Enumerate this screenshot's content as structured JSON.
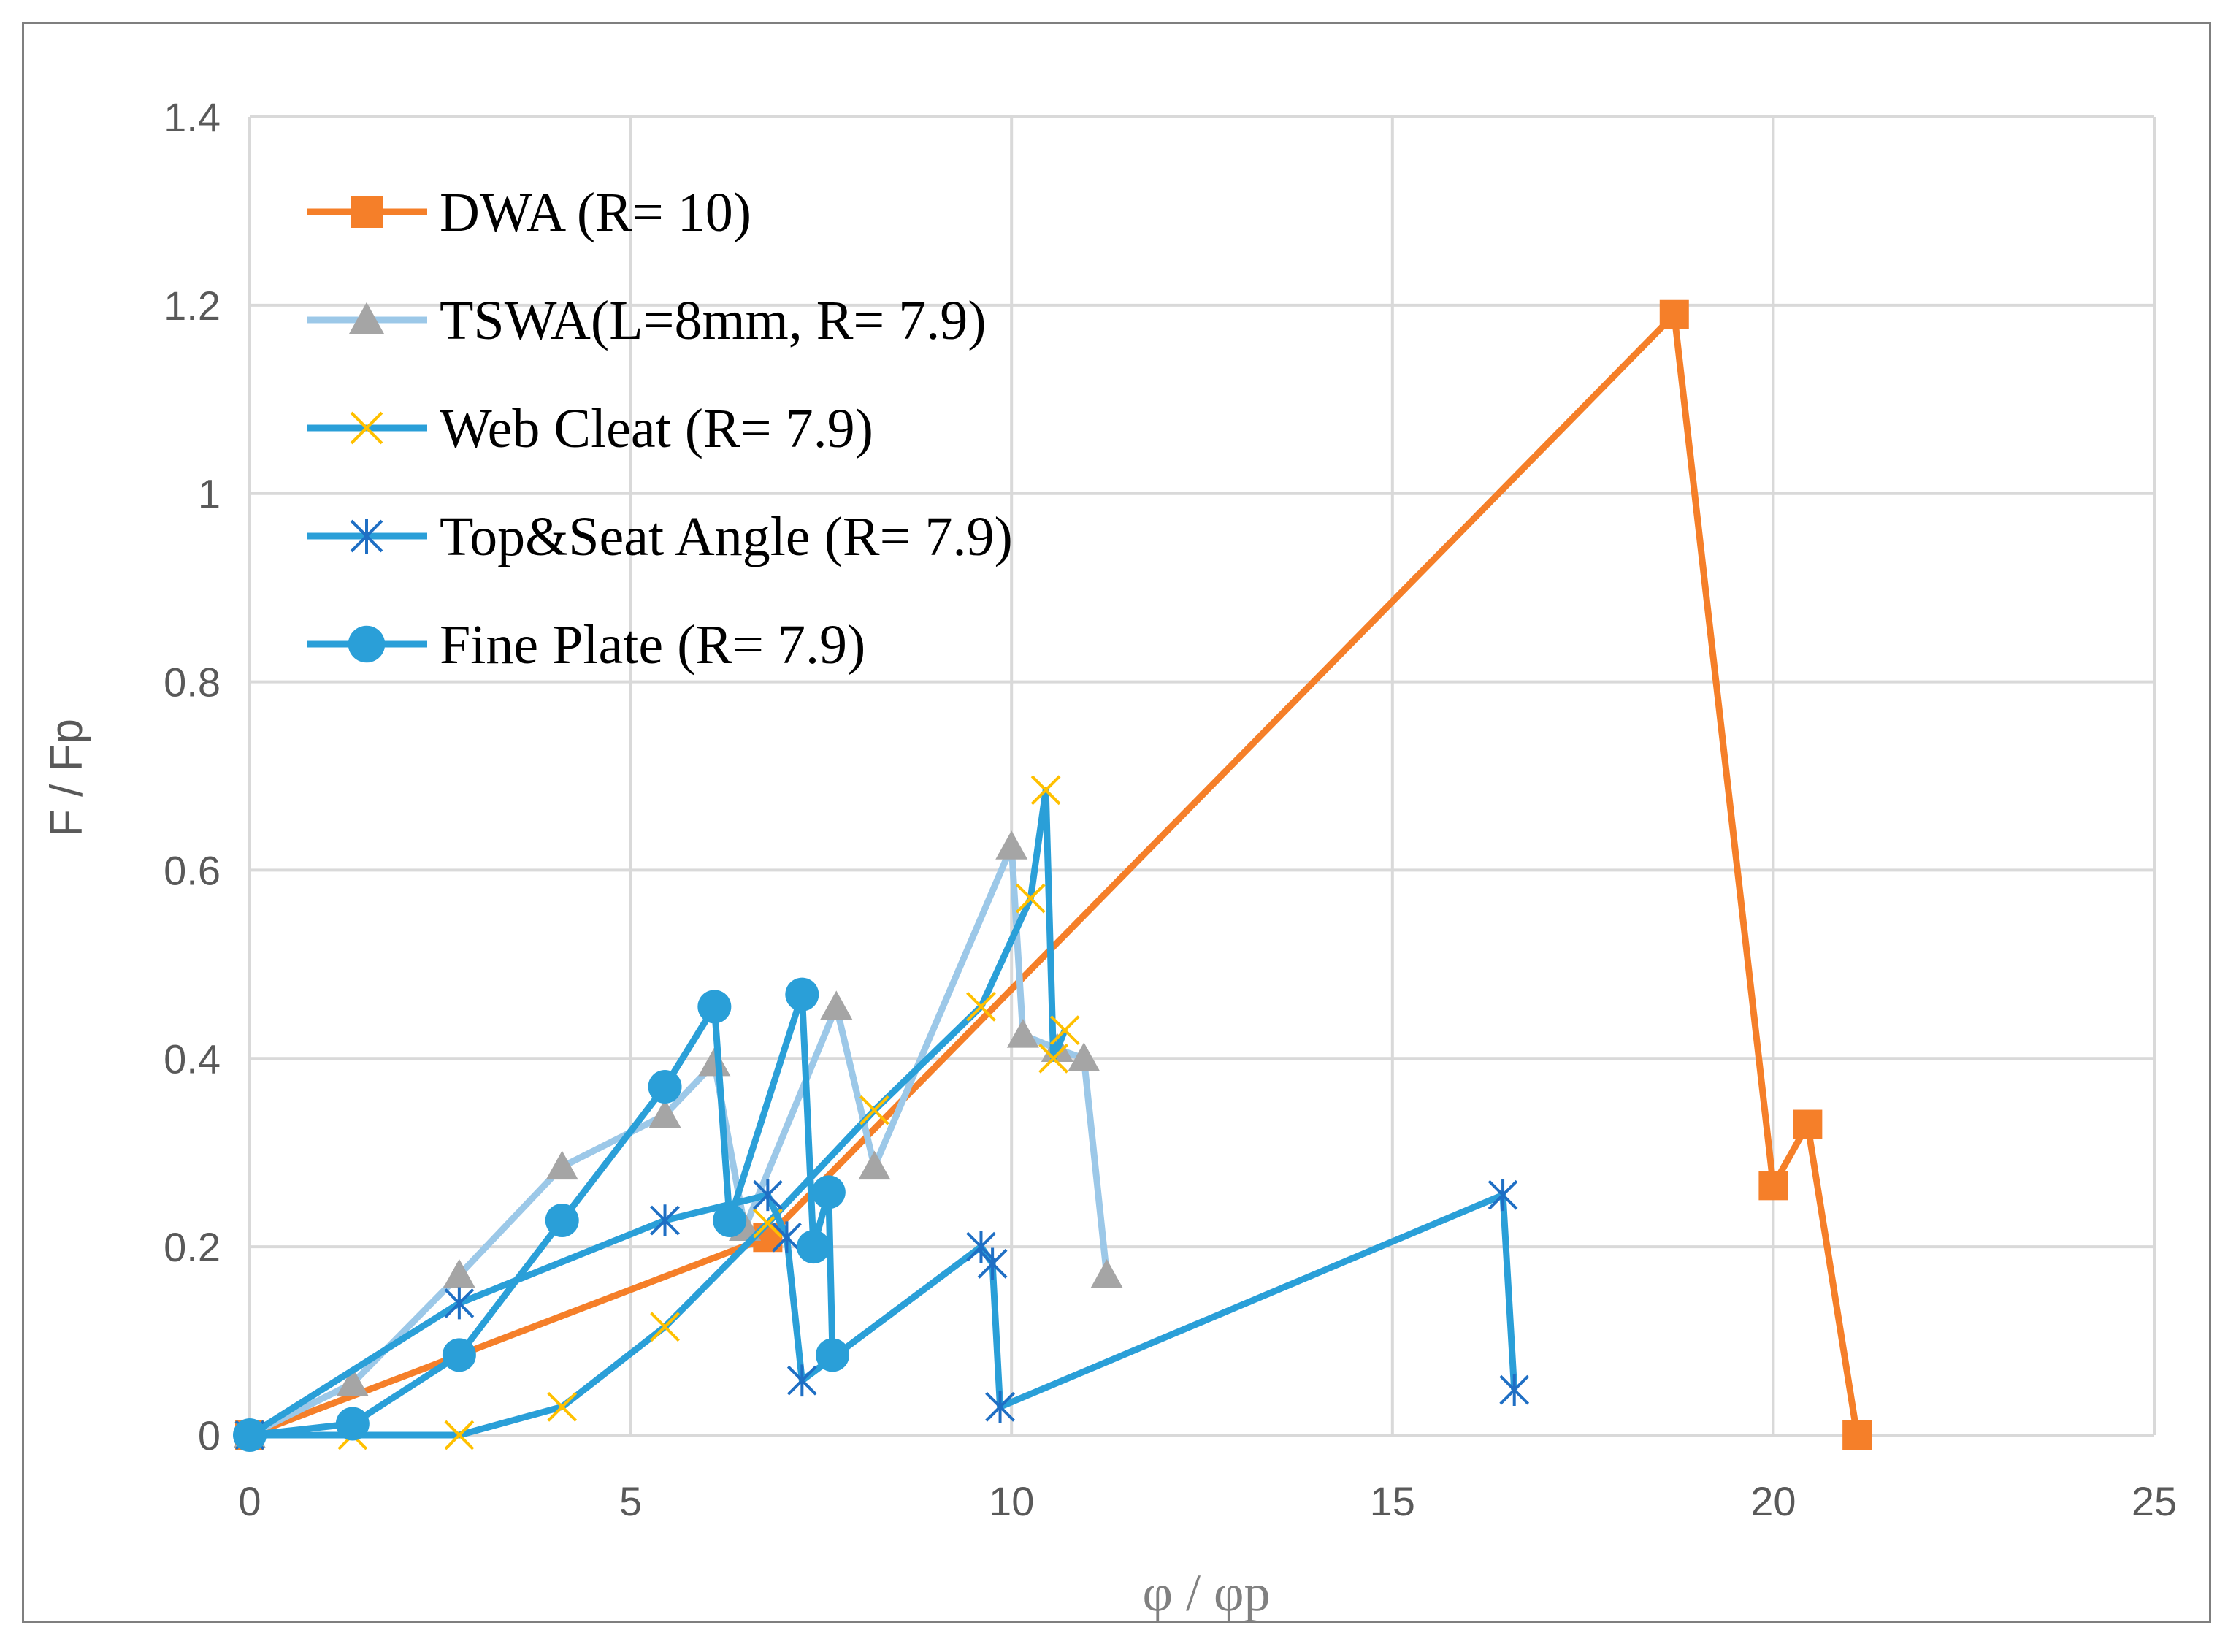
{
  "chart_data": {
    "type": "line",
    "title": "",
    "xlabel": "φ / φp",
    "ylabel": "F / Fp",
    "xlim": [
      0,
      25
    ],
    "ylim": [
      0,
      1.4
    ],
    "x_ticks": [
      0,
      5,
      10,
      15,
      20,
      25
    ],
    "y_ticks": [
      0,
      0.2,
      0.4,
      0.6,
      0.8,
      1,
      1.2,
      1.4
    ],
    "x_tick_labels": [
      "0",
      "5",
      "10",
      "15",
      "20",
      "25"
    ],
    "y_tick_labels": [
      "0",
      "0.2",
      "0.4",
      "0.6",
      "0.8",
      "1",
      "1.2",
      "1.4"
    ],
    "grid": true,
    "legend_position": "top-left",
    "series": [
      {
        "name": "DWA (R= 10)",
        "color": "#f57f29",
        "marker": "square",
        "marker_color": "#f57f29",
        "line_width": 9,
        "points": [
          [
            0,
            0
          ],
          [
            6.8,
            0.21
          ],
          [
            18.7,
            1.19
          ],
          [
            20,
            0.265
          ],
          [
            20.45,
            0.33
          ],
          [
            21.1,
            0
          ]
        ]
      },
      {
        "name": "TSWA(L=8mm, R= 7.9)",
        "color": "#9cc8e8",
        "marker": "triangle",
        "marker_color": "#a5a5a5",
        "line_width": 9,
        "points": [
          [
            0,
            0
          ],
          [
            1.35,
            0.055
          ],
          [
            2.75,
            0.17
          ],
          [
            4.1,
            0.285
          ],
          [
            5.45,
            0.34
          ],
          [
            6.1,
            0.395
          ],
          [
            6.5,
            0.22
          ],
          [
            7.7,
            0.455
          ],
          [
            8.2,
            0.285
          ],
          [
            10,
            0.625
          ],
          [
            10.15,
            0.425
          ],
          [
            10.6,
            0.41
          ],
          [
            10.95,
            0.4
          ],
          [
            11.25,
            0.17
          ]
        ]
      },
      {
        "name": "Web Cleat (R= 7.9)",
        "color": "#2a9fd8",
        "marker": "x",
        "marker_color": "#ffc000",
        "line_width": 9,
        "points": [
          [
            0,
            0
          ],
          [
            1.35,
            0
          ],
          [
            2.75,
            0
          ],
          [
            4.1,
            0.03
          ],
          [
            5.45,
            0.115
          ],
          [
            6.8,
            0.225
          ],
          [
            8.2,
            0.345
          ],
          [
            9.6,
            0.455
          ],
          [
            10.25,
            0.57
          ],
          [
            10.45,
            0.685
          ],
          [
            10.55,
            0.4
          ],
          [
            10.7,
            0.43
          ]
        ]
      },
      {
        "name": "Top&Seat Angle (R= 7.9)",
        "color": "#2a9fd8",
        "marker": "asterisk",
        "marker_color": "#1f6fc4",
        "line_width": 9,
        "points": [
          [
            0,
            0
          ],
          [
            2.75,
            0.14
          ],
          [
            5.45,
            0.228
          ],
          [
            6.8,
            0.255
          ],
          [
            7.05,
            0.21
          ],
          [
            7.25,
            0.058
          ],
          [
            9.6,
            0.2
          ],
          [
            9.75,
            0.182
          ],
          [
            9.85,
            0.03
          ],
          [
            16.45,
            0.255
          ],
          [
            16.6,
            0.048
          ]
        ]
      },
      {
        "name": "Fine Plate (R= 7.9)",
        "color": "#2a9fd8",
        "marker": "circle",
        "marker_color": "#2a9fd8",
        "line_width": 9,
        "points": [
          [
            0,
            0
          ],
          [
            1.35,
            0.012
          ],
          [
            2.75,
            0.085
          ],
          [
            4.1,
            0.228
          ],
          [
            5.45,
            0.37
          ],
          [
            6.1,
            0.455
          ],
          [
            6.3,
            0.228
          ],
          [
            7.25,
            0.468
          ],
          [
            7.4,
            0.2
          ],
          [
            7.6,
            0.258
          ],
          [
            7.65,
            0.085
          ]
        ]
      }
    ]
  }
}
